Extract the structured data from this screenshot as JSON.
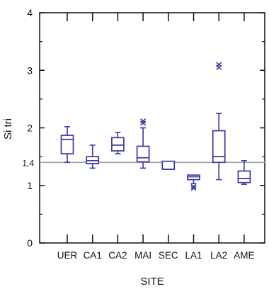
{
  "chart_data": {
    "type": "box",
    "xlabel": "SITE",
    "ylabel": "Si tri",
    "ylim": [
      0,
      4
    ],
    "y_ticks": [
      "0",
      "1",
      "2",
      "3",
      "4"
    ],
    "categories": [
      "UER",
      "CA1",
      "CA2",
      "MAI",
      "SEC",
      "LA1",
      "LA2",
      "AME"
    ],
    "reference_line": {
      "y": 1.4,
      "label": "1,4",
      "color": "#9aa6a6"
    },
    "box_color": "#3a3a9a",
    "boxes": [
      {
        "site": "UER",
        "whisker_low": 1.4,
        "q1": 1.55,
        "median": 1.8,
        "q3": 1.87,
        "whisker_high": 2.02,
        "outliers": []
      },
      {
        "site": "CA1",
        "whisker_low": 1.3,
        "q1": 1.38,
        "median": 1.43,
        "q3": 1.5,
        "whisker_high": 1.7,
        "outliers": []
      },
      {
        "site": "CA2",
        "whisker_low": 1.55,
        "q1": 1.6,
        "median": 1.7,
        "q3": 1.83,
        "whisker_high": 1.92,
        "outliers": []
      },
      {
        "site": "MAI",
        "whisker_low": 1.3,
        "q1": 1.41,
        "median": 1.48,
        "q3": 1.68,
        "whisker_high": 2.0,
        "outliers": [
          2.08,
          2.12
        ]
      },
      {
        "site": "SEC",
        "whisker_low": 1.28,
        "q1": 1.28,
        "median": 1.28,
        "q3": 1.42,
        "whisker_high": 1.42,
        "outliers": []
      },
      {
        "site": "LA1",
        "whisker_low": 1.03,
        "q1": 1.1,
        "median": 1.15,
        "q3": 1.18,
        "whisker_high": 1.18,
        "outliers": [
          0.95,
          0.98
        ]
      },
      {
        "site": "LA2",
        "whisker_low": 1.1,
        "q1": 1.4,
        "median": 1.5,
        "q3": 1.95,
        "whisker_high": 2.25,
        "outliers": [
          3.05,
          3.1
        ]
      },
      {
        "site": "AME",
        "whisker_low": 1.02,
        "q1": 1.05,
        "median": 1.12,
        "q3": 1.25,
        "whisker_high": 1.43,
        "outliers": []
      }
    ]
  }
}
